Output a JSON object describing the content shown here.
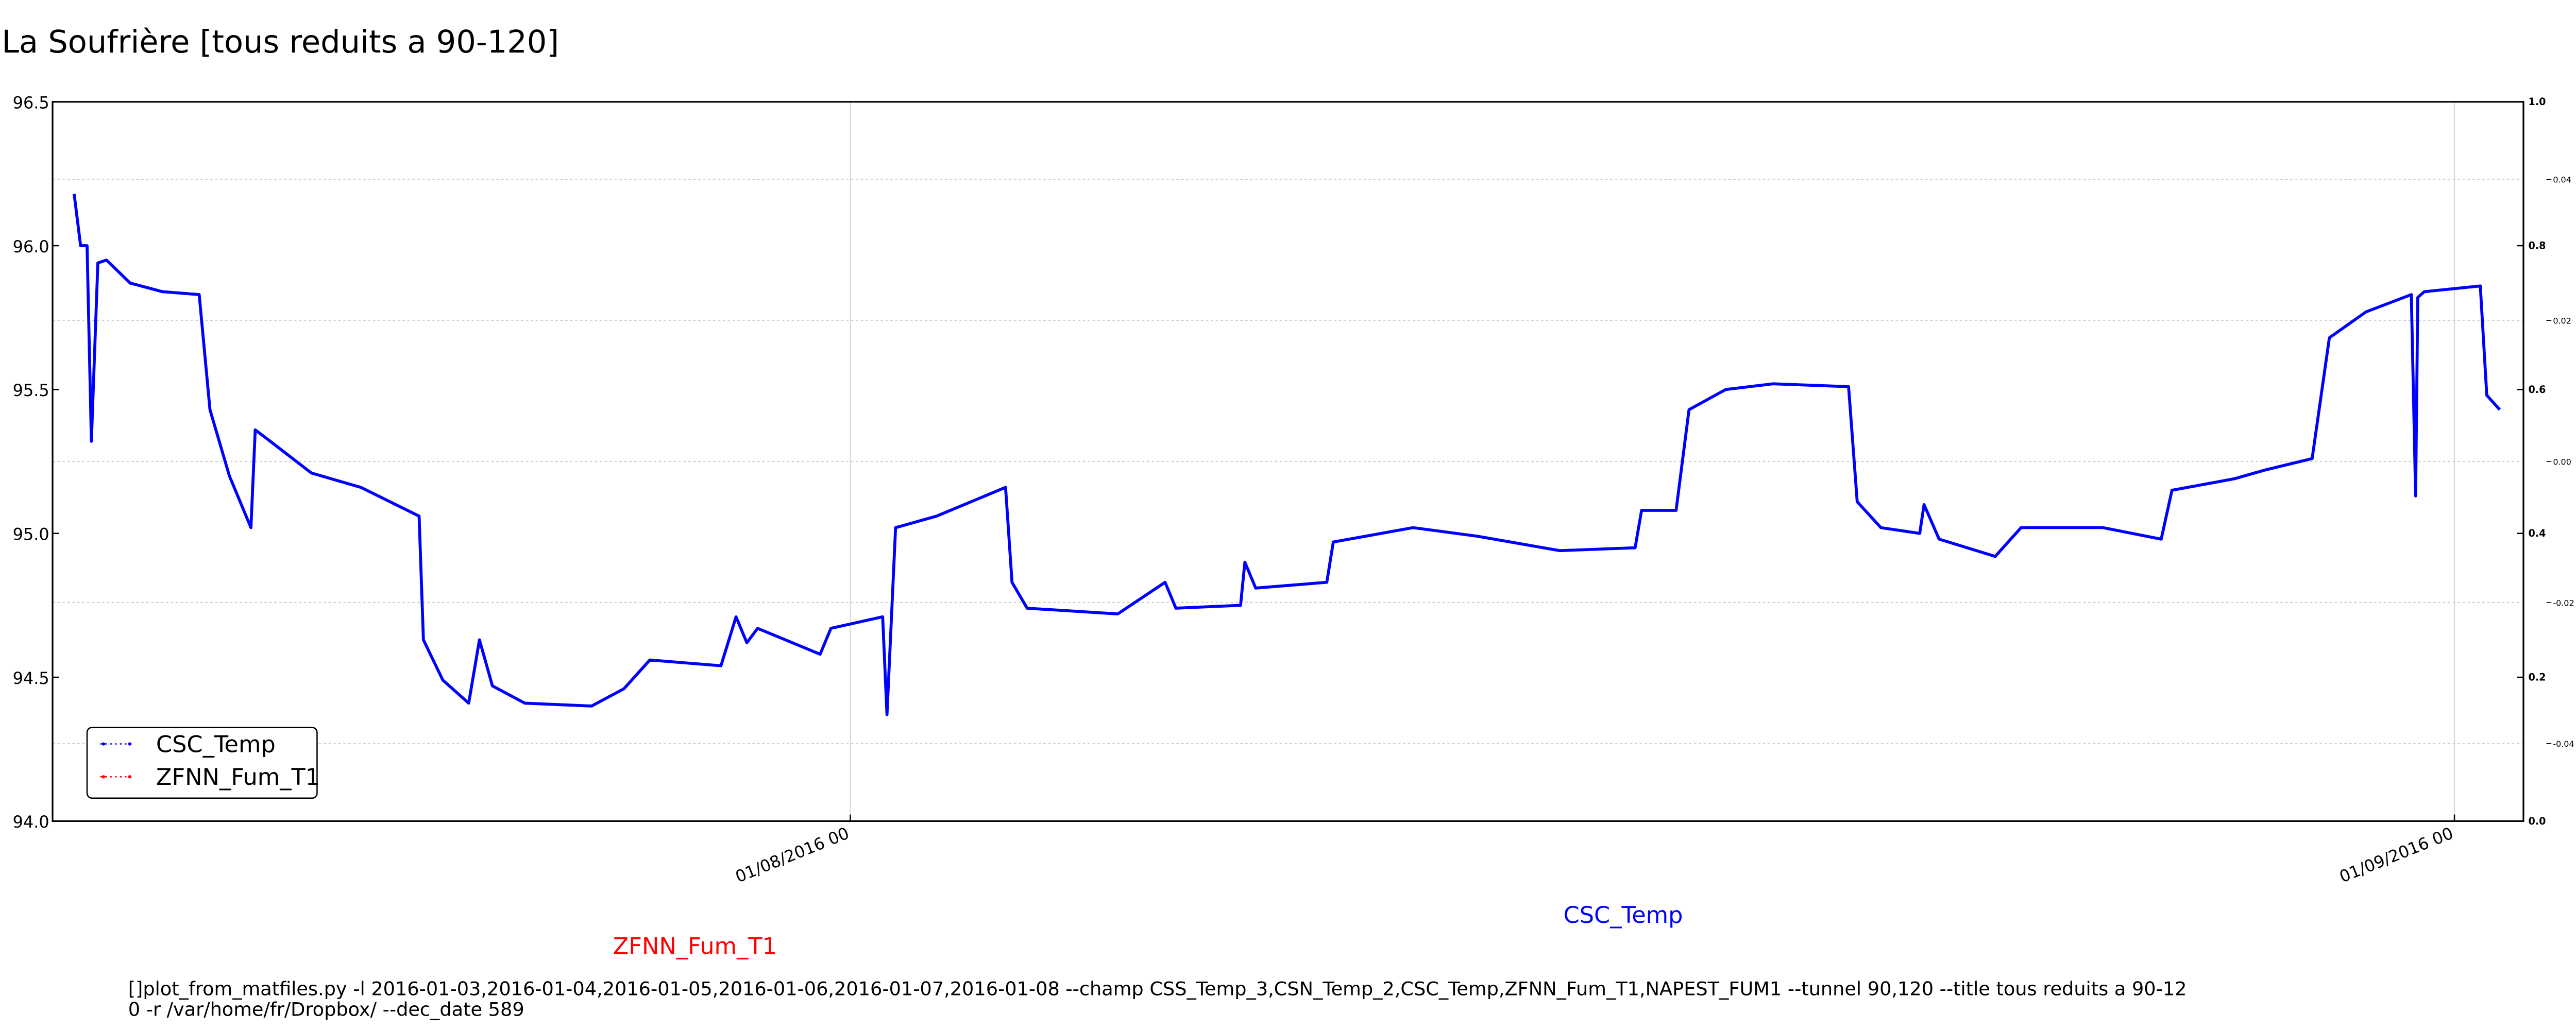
{
  "chart_data": {
    "type": "line",
    "title": "La Soufrière [tous reduits a 90-120]",
    "x": [
      "17/07/2016 00",
      "17/07/2016 03",
      "17/07/2016 06",
      "17/07/2016 08",
      "17/07/2016 11",
      "17/07/2016 15",
      "18/07/2016 02",
      "18/07/2016 17",
      "19/07/2016 10",
      "19/07/2016 15",
      "20/07/2016 00",
      "20/07/2016 10",
      "20/07/2016 12",
      "20/07/2016 19",
      "21/07/2016 14",
      "22/07/2016 13",
      "23/07/2016 16",
      "23/07/2016 18",
      "24/07/2016 03",
      "24/07/2016 15",
      "24/07/2016 20",
      "25/07/2016 02",
      "25/07/2016 17",
      "27/07/2016 00",
      "27/07/2016 15",
      "28/07/2016 03",
      "29/07/2016 12",
      "29/07/2016 19",
      "30/07/2016 00",
      "30/07/2016 05",
      "31/07/2016 10",
      "31/07/2016 15",
      "01/08/2016 15",
      "01/08/2016 17",
      "01/08/2016 21",
      "02/08/2016 16",
      "04/08/2016 00",
      "04/08/2016 03",
      "04/08/2016 10",
      "06/08/2016 04",
      "07/08/2016 02",
      "07/08/2016 07",
      "08/08/2016 13",
      "08/08/2016 15",
      "08/08/2016 20",
      "10/08/2016 05",
      "10/08/2016 08",
      "11/08/2016 21",
      "13/08/2016 03",
      "14/08/2016 17",
      "16/08/2016 04",
      "16/08/2016 07",
      "16/08/2016 23",
      "17/08/2016 05",
      "17/08/2016 22",
      "18/08/2016 20",
      "20/08/2016 07",
      "20/08/2016 11",
      "20/08/2016 22",
      "21/08/2016 16",
      "21/08/2016 18",
      "22/08/2016 01",
      "23/08/2016 03",
      "23/08/2016 15",
      "25/08/2016 05",
      "26/08/2016 08",
      "26/08/2016 13",
      "27/08/2016 18",
      "28/08/2016 08",
      "29/08/2016 06",
      "29/08/2016 14",
      "30/08/2016 07",
      "31/08/2016 04",
      "31/08/2016 06",
      "31/08/2016 07",
      "31/08/2016 10",
      "01/09/2016 12",
      "01/09/2016 15",
      "01/09/2016 21"
    ],
    "series": [
      {
        "name": "CSC_Temp",
        "color": "#0000ff",
        "values": [
          96.18,
          96.0,
          96.0,
          95.32,
          95.94,
          95.95,
          95.87,
          95.84,
          95.83,
          95.43,
          95.2,
          95.02,
          95.36,
          95.32,
          95.21,
          95.16,
          95.06,
          94.63,
          94.49,
          94.41,
          94.63,
          94.47,
          94.41,
          94.4,
          94.46,
          94.56,
          94.54,
          94.71,
          94.62,
          94.67,
          94.58,
          94.67,
          94.71,
          94.37,
          95.02,
          95.06,
          95.16,
          94.83,
          94.74,
          94.72,
          94.83,
          94.74,
          94.75,
          94.9,
          94.81,
          94.83,
          94.97,
          95.02,
          94.99,
          94.94,
          94.95,
          95.08,
          95.08,
          95.43,
          95.5,
          95.52,
          95.51,
          95.11,
          95.02,
          95.0,
          95.1,
          94.98,
          94.92,
          95.02,
          95.02,
          94.98,
          95.15,
          95.19,
          95.22,
          95.26,
          95.68,
          95.77,
          95.83,
          95.13,
          95.82,
          95.84,
          95.86,
          95.48,
          95.43
        ]
      },
      {
        "name": "ZFNN_Fum_T1",
        "color": "#ff0000",
        "values": [
          null,
          null,
          null,
          null,
          null,
          null,
          null,
          null,
          null,
          null,
          null,
          null,
          null,
          null,
          null,
          null,
          null,
          null,
          null,
          null,
          null,
          null,
          null,
          null,
          null,
          null,
          null,
          null,
          null,
          null,
          null,
          null,
          null,
          null,
          null,
          null,
          null,
          null,
          null,
          null,
          null,
          null,
          null,
          null,
          null,
          null,
          null,
          null,
          null,
          null,
          null,
          null,
          null,
          null,
          null,
          null,
          null,
          null,
          null,
          null,
          null,
          null,
          null,
          null,
          null,
          null,
          null,
          null,
          null,
          null,
          null,
          null,
          null,
          null,
          null,
          null,
          null,
          null,
          null
        ]
      }
    ],
    "xlim": [
      "16/07/2016 14",
      "02/09/2016 08"
    ],
    "xticks": [
      "01/08/2016 00",
      "01/09/2016 00"
    ],
    "ylim": [
      94.0,
      96.5
    ],
    "yticks": [
      {
        "value": 94,
        "label": "94.0"
      },
      94.5,
      {
        "value": 95,
        "label": "95.0"
      },
      95.5,
      {
        "value": 96,
        "label": "96.0"
      },
      96.5
    ],
    "y2lim": [
      0,
      1
    ],
    "y2ticks": [
      {
        "value": 0,
        "label": "0.0"
      },
      0.2,
      0.4,
      0.6,
      0.8,
      {
        "value": 1,
        "label": "1.0"
      }
    ],
    "y3lim": [
      -0.051,
      0.051
    ],
    "y3ticks": [
      -0.04,
      -0.02,
      {
        "value": 0,
        "label": "0.00"
      },
      0.02,
      0.04
    ],
    "grid": true,
    "legend": "lower left",
    "command": [
      "[]plot_from_matfiles.py -l 2016-01-03,2016-01-04,2016-01-05,2016-01-06,2016-01-07,2016-01-08 --champ CSS_Temp_3,CSN_Temp_2,CSC_Temp,ZFNN_Fum_T1,NAPEST_FUM1 --tunnel 90,120 --title tous reduits a 90-12",
      "0 -r /var/home/fr/Dropbox/ --dec_date 589"
    ]
  }
}
